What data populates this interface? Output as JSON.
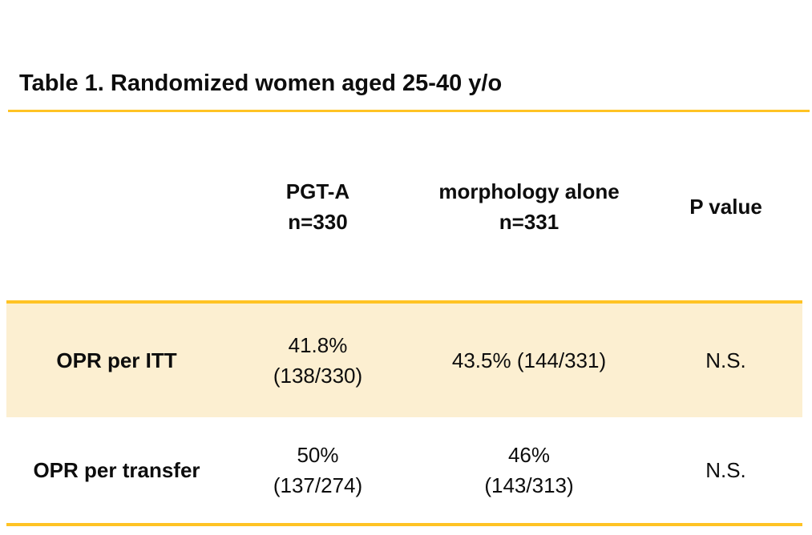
{
  "slide": {
    "title": "Table 1. Randomized women aged 25-40 y/o"
  },
  "colors": {
    "accent": "#FFC324",
    "row_highlight": "#FCEFD1",
    "text": "#0d0d0d",
    "background": "#ffffff"
  },
  "table": {
    "header_cells": [
      [
        ""
      ],
      [
        "PGT-A",
        "n=330"
      ],
      [
        "morphology alone",
        "n=331"
      ],
      [
        "P value"
      ]
    ],
    "rows": [
      {
        "cells": [
          [
            "OPR per ITT"
          ],
          [
            "41.8%",
            "(138/330)"
          ],
          [
            "43.5% (144/331)"
          ],
          [
            "N.S."
          ]
        ],
        "highlighted": true
      },
      {
        "cells": [
          [
            "OPR per transfer"
          ],
          [
            "50%",
            "(137/274)"
          ],
          [
            "46%",
            "(143/313)"
          ],
          [
            "N.S."
          ]
        ],
        "highlighted": false
      }
    ]
  },
  "chart_data": {
    "type": "table",
    "title": "Table 1. Randomized women aged 25-40 y/o",
    "columns": [
      "",
      "PGT-A n=330",
      "morphology alone n=331",
      "P value"
    ],
    "rows": [
      [
        "OPR per ITT",
        "41.8% (138/330)",
        "43.5% (144/331)",
        "N.S."
      ],
      [
        "OPR per transfer",
        "50% (137/274)",
        "46% (143/313)",
        "N.S."
      ]
    ],
    "notes": {
      "highlighted_row": "OPR per ITT",
      "group_sizes": {
        "PGT-A": 330,
        "morphology alone": 331
      },
      "values_numeric": {
        "OPR per ITT": {
          "PGT-A": {
            "pct": 41.8,
            "num": 138,
            "den": 330
          },
          "morphology alone": {
            "pct": 43.5,
            "num": 144,
            "den": 331
          }
        },
        "OPR per transfer": {
          "PGT-A": {
            "pct": 50,
            "num": 137,
            "den": 274
          },
          "morphology alone": {
            "pct": 46,
            "num": 143,
            "den": 313
          }
        }
      }
    }
  }
}
